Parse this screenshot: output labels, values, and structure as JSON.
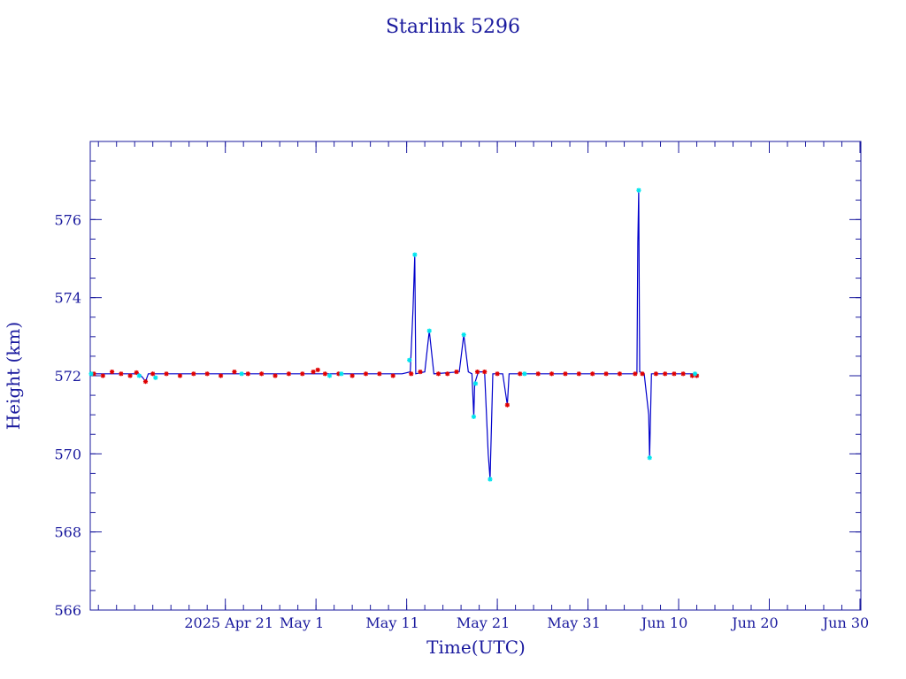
{
  "colors": {
    "axis": "#1a1a9e",
    "text": "#1a1a9e",
    "line": "#0000cc",
    "marker_primary": "#e00000",
    "marker_secondary": "#00e5ee"
  },
  "chart_data": {
    "type": "line",
    "title": "Starlink 5296",
    "xlabel": "Time(UTC)",
    "ylabel": "Height (km)",
    "x_axis": {
      "unit": "days since 2025 Apr 11 (UTC)",
      "range": [
        -4.9,
        80.1
      ],
      "major_ticks": [
        {
          "x": 10,
          "label": "2025 Apr 21"
        },
        {
          "x": 20,
          "label": "May  1"
        },
        {
          "x": 30,
          "label": "May 11"
        },
        {
          "x": 40,
          "label": "May 21"
        },
        {
          "x": 50,
          "label": "May 31"
        },
        {
          "x": 60,
          "label": "Jun 10"
        },
        {
          "x": 70,
          "label": "Jun 20"
        },
        {
          "x": 80,
          "label": "Jun 30"
        }
      ],
      "minor_step": 2
    },
    "y_axis": {
      "range": [
        566,
        578
      ],
      "major_ticks": [
        566,
        568,
        570,
        572,
        574,
        576
      ],
      "minor_step": 0.5
    },
    "grid": false,
    "series": [
      {
        "style": "line",
        "points": [
          [
            -4.8,
            572.05
          ],
          [
            0.5,
            572.05
          ],
          [
            0.9,
            571.95
          ],
          [
            1.2,
            571.85
          ],
          [
            1.5,
            572.05
          ],
          [
            29.5,
            572.05
          ],
          [
            30.4,
            572.1
          ],
          [
            30.7,
            573.7
          ],
          [
            30.9,
            575.1
          ],
          [
            31.0,
            572.05
          ],
          [
            32.0,
            572.1
          ],
          [
            32.5,
            573.15
          ],
          [
            33.0,
            572.05
          ],
          [
            35.8,
            572.1
          ],
          [
            36.3,
            573.05
          ],
          [
            36.8,
            572.1
          ],
          [
            37.2,
            572.05
          ],
          [
            37.4,
            570.95
          ],
          [
            37.5,
            571.8
          ],
          [
            37.9,
            572.1
          ],
          [
            38.6,
            572.1
          ],
          [
            39.0,
            570.0
          ],
          [
            39.2,
            569.35
          ],
          [
            39.5,
            572.05
          ],
          [
            40.6,
            572.05
          ],
          [
            41.1,
            571.25
          ],
          [
            41.3,
            572.05
          ],
          [
            55.4,
            572.05
          ],
          [
            55.5,
            575.4
          ],
          [
            55.6,
            576.75
          ],
          [
            55.7,
            572.1
          ],
          [
            56.2,
            572.05
          ],
          [
            56.7,
            571.0
          ],
          [
            56.8,
            569.9
          ],
          [
            57.0,
            572.05
          ],
          [
            62.0,
            572.05
          ]
        ]
      },
      {
        "style": "markers",
        "marker": "*",
        "color": "#e00000",
        "points": [
          [
            -4.5,
            572.05
          ],
          [
            -3.5,
            572.0
          ],
          [
            -2.5,
            572.1
          ],
          [
            -1.5,
            572.05
          ],
          [
            -0.5,
            572.0
          ],
          [
            0.2,
            572.08
          ],
          [
            1.2,
            571.85
          ],
          [
            2.0,
            572.05
          ],
          [
            3.5,
            572.05
          ],
          [
            5.0,
            572.0
          ],
          [
            6.5,
            572.05
          ],
          [
            8.0,
            572.05
          ],
          [
            9.5,
            572.0
          ],
          [
            11.0,
            572.1
          ],
          [
            12.5,
            572.05
          ],
          [
            14.0,
            572.05
          ],
          [
            15.5,
            572.0
          ],
          [
            17.0,
            572.05
          ],
          [
            18.5,
            572.05
          ],
          [
            19.7,
            572.1
          ],
          [
            20.2,
            572.15
          ],
          [
            21.0,
            572.05
          ],
          [
            22.5,
            572.05
          ],
          [
            24.0,
            572.0
          ],
          [
            25.5,
            572.05
          ],
          [
            27.0,
            572.05
          ],
          [
            28.5,
            572.0
          ],
          [
            30.5,
            572.05
          ],
          [
            31.5,
            572.1
          ],
          [
            33.5,
            572.05
          ],
          [
            34.5,
            572.05
          ],
          [
            35.5,
            572.1
          ],
          [
            37.8,
            572.1
          ],
          [
            38.6,
            572.1
          ],
          [
            40.0,
            572.05
          ],
          [
            41.1,
            571.25
          ],
          [
            42.5,
            572.05
          ],
          [
            44.5,
            572.05
          ],
          [
            46.0,
            572.05
          ],
          [
            47.5,
            572.05
          ],
          [
            49.0,
            572.05
          ],
          [
            50.5,
            572.05
          ],
          [
            52.0,
            572.05
          ],
          [
            53.5,
            572.05
          ],
          [
            55.2,
            572.05
          ],
          [
            56.0,
            572.05
          ],
          [
            57.5,
            572.05
          ],
          [
            58.5,
            572.05
          ],
          [
            59.5,
            572.05
          ],
          [
            60.5,
            572.05
          ],
          [
            61.5,
            572.0
          ],
          [
            62.0,
            572.0
          ]
        ]
      },
      {
        "style": "markers",
        "marker": "*",
        "color": "#00e5ee",
        "points": [
          [
            -4.8,
            572.05
          ],
          [
            0.5,
            572.0
          ],
          [
            2.3,
            571.95
          ],
          [
            11.8,
            572.05
          ],
          [
            21.5,
            572.0
          ],
          [
            22.8,
            572.05
          ],
          [
            30.3,
            572.4
          ],
          [
            30.9,
            575.1
          ],
          [
            32.5,
            573.15
          ],
          [
            36.3,
            573.05
          ],
          [
            37.4,
            570.95
          ],
          [
            37.6,
            571.8
          ],
          [
            39.2,
            569.35
          ],
          [
            43.0,
            572.05
          ],
          [
            55.6,
            576.75
          ],
          [
            56.8,
            569.9
          ],
          [
            61.8,
            572.05
          ]
        ]
      }
    ]
  }
}
